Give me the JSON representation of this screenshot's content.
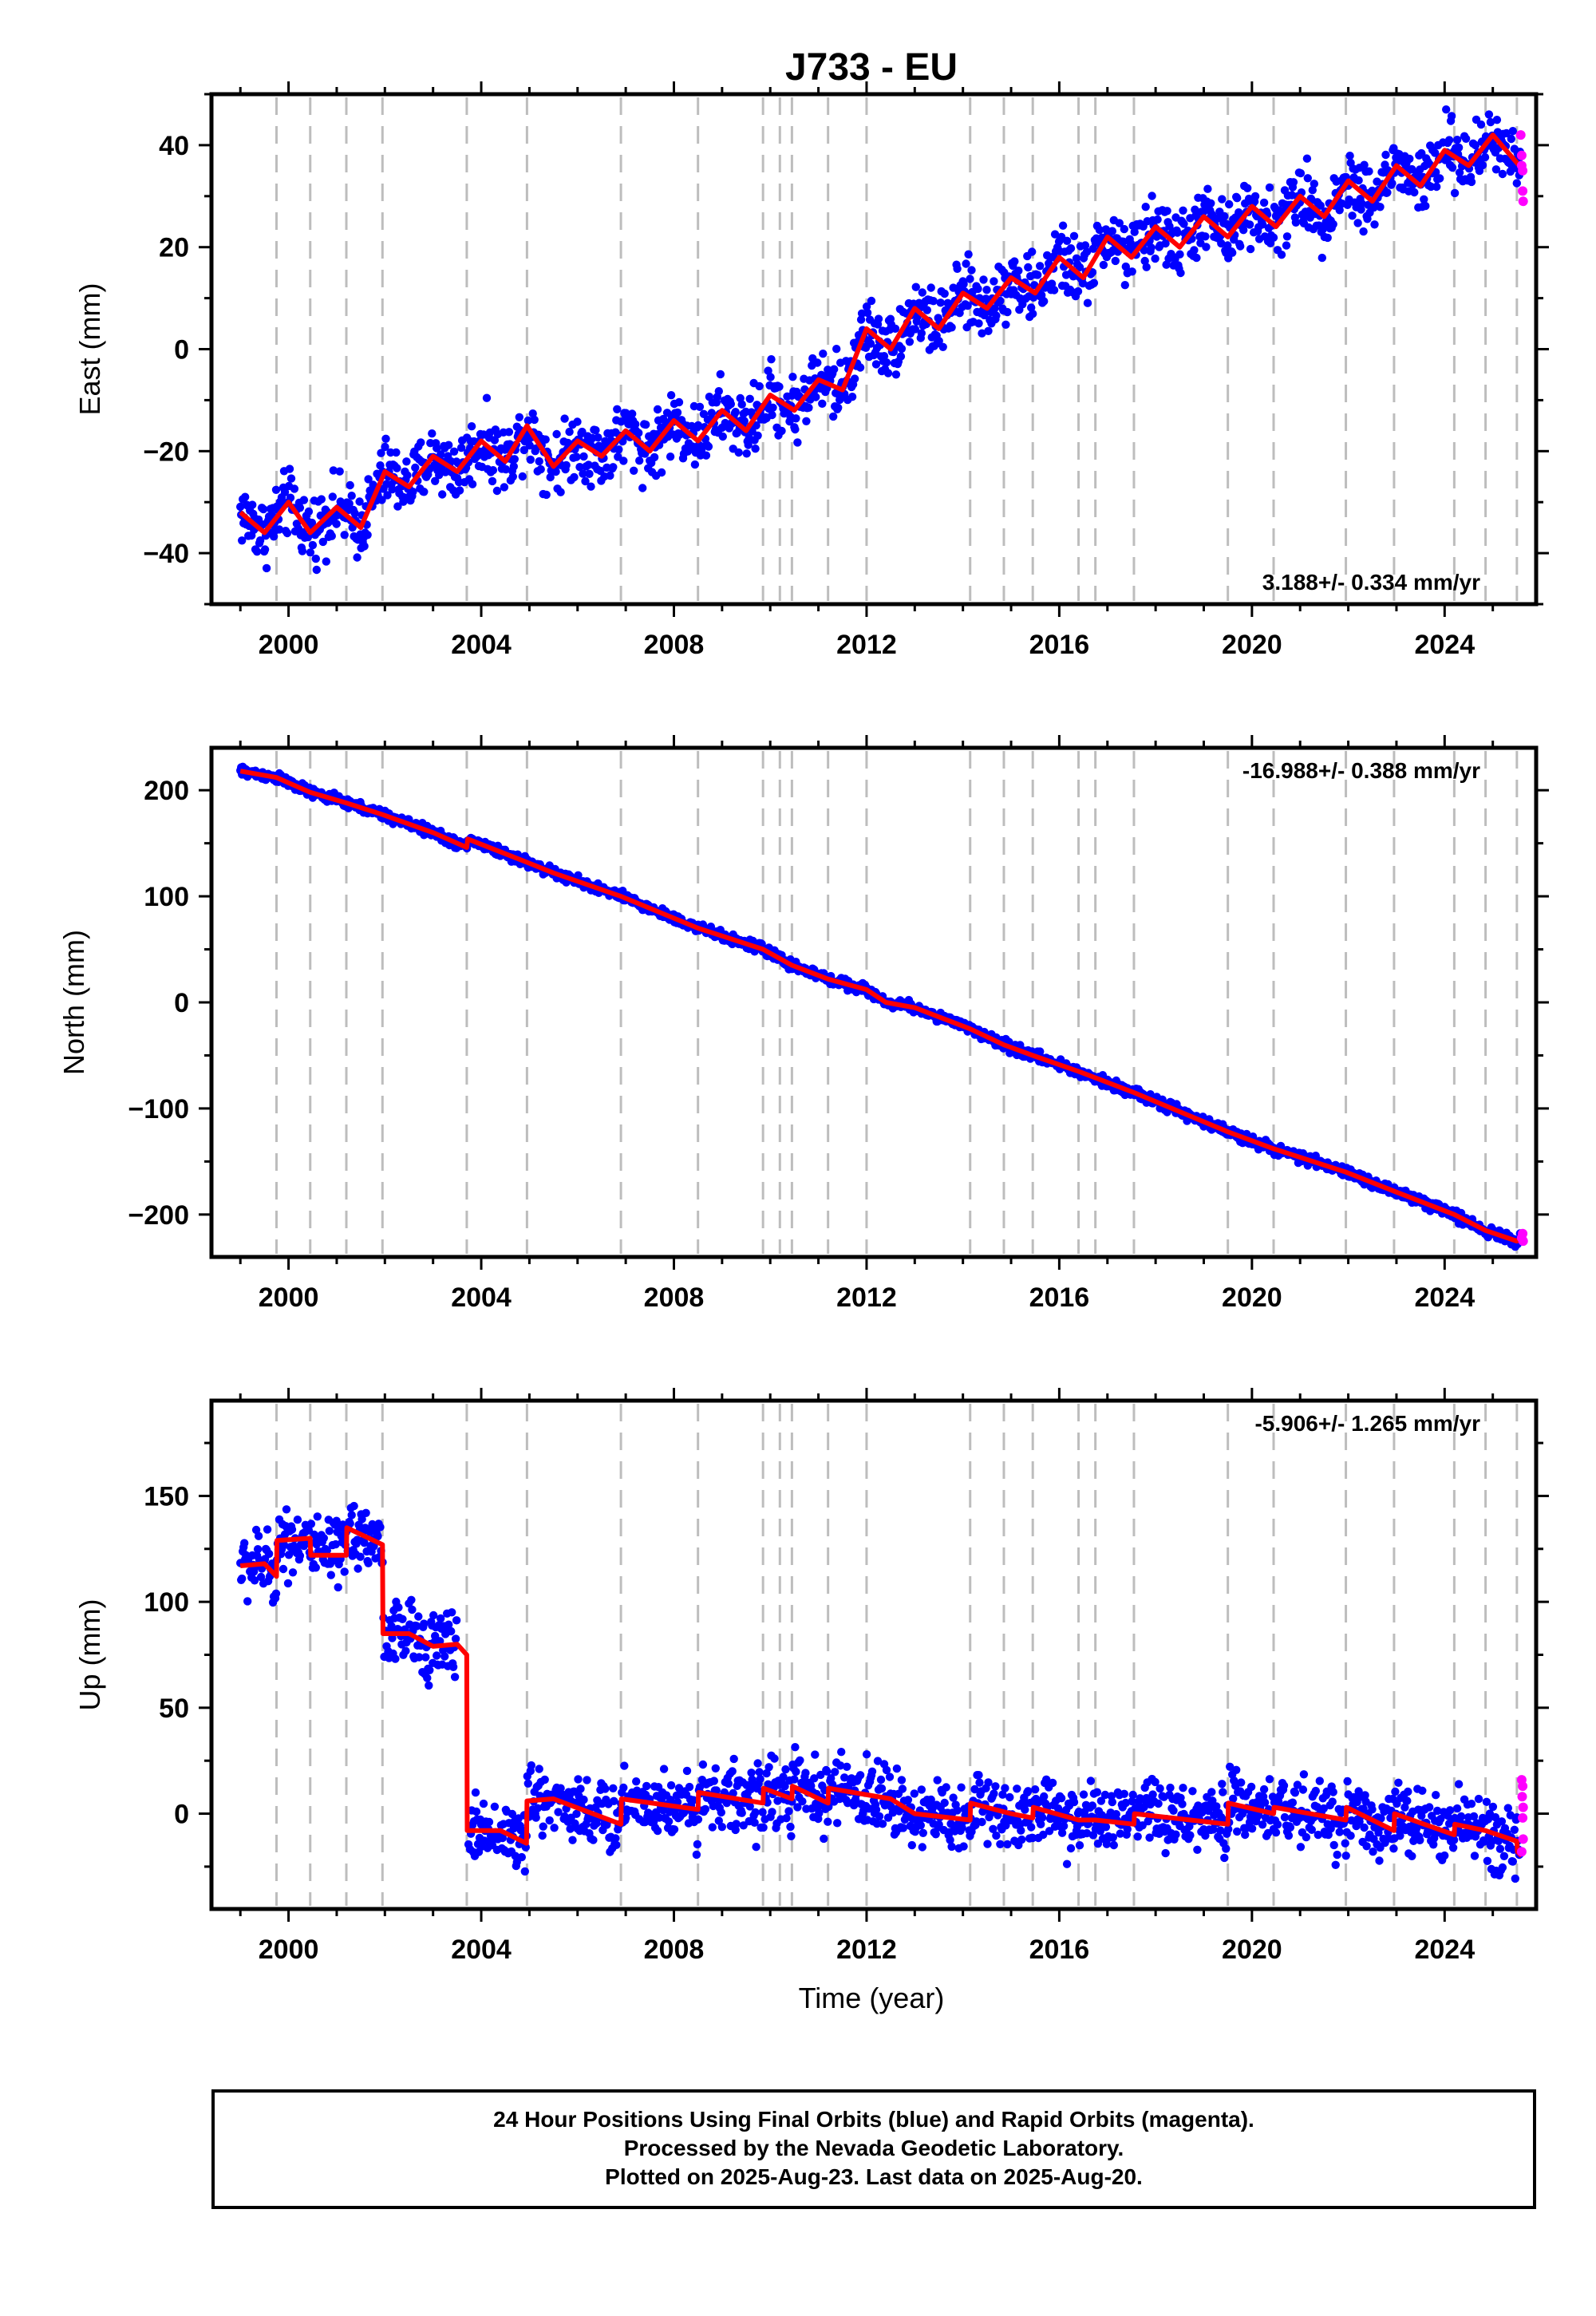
{
  "chart_data": {
    "type": "scatter",
    "title": "J733 - EU",
    "xlabel": "Time (year)",
    "xlim": [
      1998.4,
      2025.9
    ],
    "x_ticks": [
      2000,
      2004,
      2008,
      2012,
      2016,
      2020,
      2024
    ],
    "x_tick_labels": [
      "2000",
      "2004",
      "2008",
      "2012",
      "2016",
      "2020",
      "2024"
    ],
    "event_lines": [
      1999.75,
      2000.45,
      2001.2,
      2001.95,
      2003.7,
      2004.95,
      2006.9,
      2008.5,
      2009.85,
      2010.2,
      2010.45,
      2011.2,
      2012.0,
      2014.15,
      2014.85,
      2015.45,
      2016.4,
      2016.75,
      2017.55,
      2019.5,
      2020.45,
      2021.95,
      2022.95,
      2024.2,
      2024.85,
      2025.5
    ],
    "series_legend": {
      "final": "blue",
      "rapid": "magenta",
      "model": "red"
    },
    "panels": [
      {
        "id": "east",
        "ylabel": "East (mm)",
        "ylim": [
          -50,
          50
        ],
        "y_ticks": [
          -40,
          -20,
          0,
          20,
          40
        ],
        "y_tick_labels": [
          "−40",
          "−20",
          "0",
          "20",
          "40"
        ],
        "rate_label": "3.188+/- 0.334 mm/yr",
        "rate_position": "bottom-right",
        "noise": 4,
        "model_points": [
          [
            1999.0,
            -32
          ],
          [
            1999.5,
            -36
          ],
          [
            2000.0,
            -30
          ],
          [
            2000.45,
            -36
          ],
          [
            2001.0,
            -31
          ],
          [
            2001.5,
            -35
          ],
          [
            2002.0,
            -24
          ],
          [
            2002.5,
            -27
          ],
          [
            2003.0,
            -21
          ],
          [
            2003.5,
            -24
          ],
          [
            2004.0,
            -18
          ],
          [
            2004.5,
            -22
          ],
          [
            2004.95,
            -15
          ],
          [
            2005.5,
            -23
          ],
          [
            2006.0,
            -18
          ],
          [
            2006.5,
            -21
          ],
          [
            2007.0,
            -16
          ],
          [
            2007.5,
            -20
          ],
          [
            2008.0,
            -14
          ],
          [
            2008.5,
            -18
          ],
          [
            2009.0,
            -12
          ],
          [
            2009.5,
            -16
          ],
          [
            2010.0,
            -9
          ],
          [
            2010.5,
            -12
          ],
          [
            2011.0,
            -6
          ],
          [
            2011.5,
            -8
          ],
          [
            2012.0,
            4
          ],
          [
            2012.5,
            0
          ],
          [
            2013.0,
            8
          ],
          [
            2013.5,
            4
          ],
          [
            2014.0,
            11
          ],
          [
            2014.5,
            8
          ],
          [
            2015.0,
            14
          ],
          [
            2015.5,
            11
          ],
          [
            2016.0,
            18
          ],
          [
            2016.5,
            14
          ],
          [
            2017.0,
            22
          ],
          [
            2017.5,
            18
          ],
          [
            2018.0,
            24
          ],
          [
            2018.5,
            20
          ],
          [
            2019.0,
            26
          ],
          [
            2019.5,
            22
          ],
          [
            2020.0,
            28
          ],
          [
            2020.5,
            24
          ],
          [
            2021.0,
            30
          ],
          [
            2021.5,
            26
          ],
          [
            2022.0,
            33
          ],
          [
            2022.5,
            29
          ],
          [
            2023.0,
            36
          ],
          [
            2023.5,
            32
          ],
          [
            2024.0,
            39
          ],
          [
            2024.5,
            36
          ],
          [
            2025.0,
            42
          ],
          [
            2025.55,
            36
          ]
        ],
        "rapid_points": [
          [
            2025.58,
            42
          ],
          [
            2025.6,
            38
          ],
          [
            2025.62,
            35
          ],
          [
            2025.62,
            31
          ],
          [
            2025.63,
            29
          ],
          [
            2025.6,
            36
          ]
        ]
      },
      {
        "id": "north",
        "ylabel": "North (mm)",
        "ylim": [
          -240,
          240
        ],
        "y_ticks": [
          -200,
          -100,
          0,
          100,
          200
        ],
        "y_tick_labels": [
          "−200",
          "−100",
          "0",
          "100",
          "200"
        ],
        "rate_label": "-16.988+/- 0.388 mm/yr",
        "rate_position": "top-right",
        "noise": 3,
        "model_points": [
          [
            1999.0,
            218
          ],
          [
            1999.75,
            212
          ],
          [
            2000.45,
            198
          ],
          [
            2001.2,
            188
          ],
          [
            2001.95,
            177
          ],
          [
            2003.0,
            160
          ],
          [
            2003.7,
            146
          ],
          [
            2003.72,
            154
          ],
          [
            2004.95,
            132
          ],
          [
            2005.5,
            122
          ],
          [
            2006.9,
            100
          ],
          [
            2008.5,
            70
          ],
          [
            2009.85,
            50
          ],
          [
            2010.45,
            35
          ],
          [
            2011.2,
            22
          ],
          [
            2012.0,
            12
          ],
          [
            2012.4,
            0
          ],
          [
            2013.0,
            -5
          ],
          [
            2014.15,
            -25
          ],
          [
            2014.85,
            -40
          ],
          [
            2015.45,
            -50
          ],
          [
            2016.4,
            -65
          ],
          [
            2017.55,
            -85
          ],
          [
            2019.5,
            -122
          ],
          [
            2020.45,
            -138
          ],
          [
            2021.95,
            -160
          ],
          [
            2022.95,
            -178
          ],
          [
            2024.2,
            -200
          ],
          [
            2024.85,
            -215
          ],
          [
            2025.5,
            -225
          ],
          [
            2025.6,
            -222
          ]
        ],
        "rapid_points": [
          [
            2025.6,
            -222
          ],
          [
            2025.62,
            -218
          ],
          [
            2025.63,
            -225
          ]
        ]
      },
      {
        "id": "up",
        "ylabel": "Up (mm)",
        "ylim": [
          -45,
          195
        ],
        "y_ticks": [
          0,
          50,
          100,
          150
        ],
        "y_tick_labels": [
          "0",
          "50",
          "100",
          "150"
        ],
        "rate_label": "-5.906+/- 1.265 mm/yr",
        "rate_position": "top-right",
        "noise": 10,
        "model_points": [
          [
            1999.0,
            117
          ],
          [
            1999.5,
            118
          ],
          [
            1999.75,
            112
          ],
          [
            1999.76,
            129
          ],
          [
            2000.45,
            130
          ],
          [
            2000.46,
            122
          ],
          [
            2001.2,
            122
          ],
          [
            2001.21,
            135
          ],
          [
            2001.95,
            127
          ],
          [
            2001.96,
            85
          ],
          [
            2002.5,
            85
          ],
          [
            2003.0,
            79
          ],
          [
            2003.5,
            80
          ],
          [
            2003.7,
            75
          ],
          [
            2003.71,
            -8
          ],
          [
            2004.4,
            -8
          ],
          [
            2004.94,
            -14
          ],
          [
            2004.95,
            6
          ],
          [
            2005.5,
            7
          ],
          [
            2006.9,
            -5
          ],
          [
            2006.91,
            7
          ],
          [
            2008.5,
            2
          ],
          [
            2008.51,
            10
          ],
          [
            2009.85,
            5
          ],
          [
            2009.86,
            12
          ],
          [
            2010.45,
            7
          ],
          [
            2010.46,
            13
          ],
          [
            2011.2,
            5
          ],
          [
            2011.21,
            12
          ],
          [
            2012.5,
            7
          ],
          [
            2013.0,
            0
          ],
          [
            2014.15,
            -3
          ],
          [
            2014.16,
            5
          ],
          [
            2015.0,
            0
          ],
          [
            2015.45,
            -2
          ],
          [
            2015.46,
            3
          ],
          [
            2016.4,
            -3
          ],
          [
            2016.75,
            -3
          ],
          [
            2017.55,
            -5
          ],
          [
            2017.56,
            0
          ],
          [
            2019.5,
            -5
          ],
          [
            2019.51,
            5
          ],
          [
            2020.45,
            0
          ],
          [
            2020.46,
            3
          ],
          [
            2021.95,
            -3
          ],
          [
            2021.96,
            3
          ],
          [
            2022.95,
            -8
          ],
          [
            2022.96,
            0
          ],
          [
            2024.2,
            -10
          ],
          [
            2024.21,
            -5
          ],
          [
            2024.85,
            -8
          ],
          [
            2025.5,
            -13
          ],
          [
            2025.51,
            -18
          ],
          [
            2025.6,
            -20
          ]
        ],
        "rapid_points": [
          [
            2025.6,
            16
          ],
          [
            2025.62,
            13
          ],
          [
            2025.61,
            8
          ],
          [
            2025.63,
            3
          ],
          [
            2025.62,
            -2
          ],
          [
            2025.63,
            -12
          ],
          [
            2025.6,
            -18
          ]
        ]
      }
    ]
  },
  "caption": {
    "line1": "24 Hour Positions Using Final Orbits (blue) and Rapid Orbits (magenta).",
    "line2": "Processed by the Nevada Geodetic Laboratory.",
    "line3": "Plotted on 2025-Aug-23. Last data on 2025-Aug-20."
  }
}
